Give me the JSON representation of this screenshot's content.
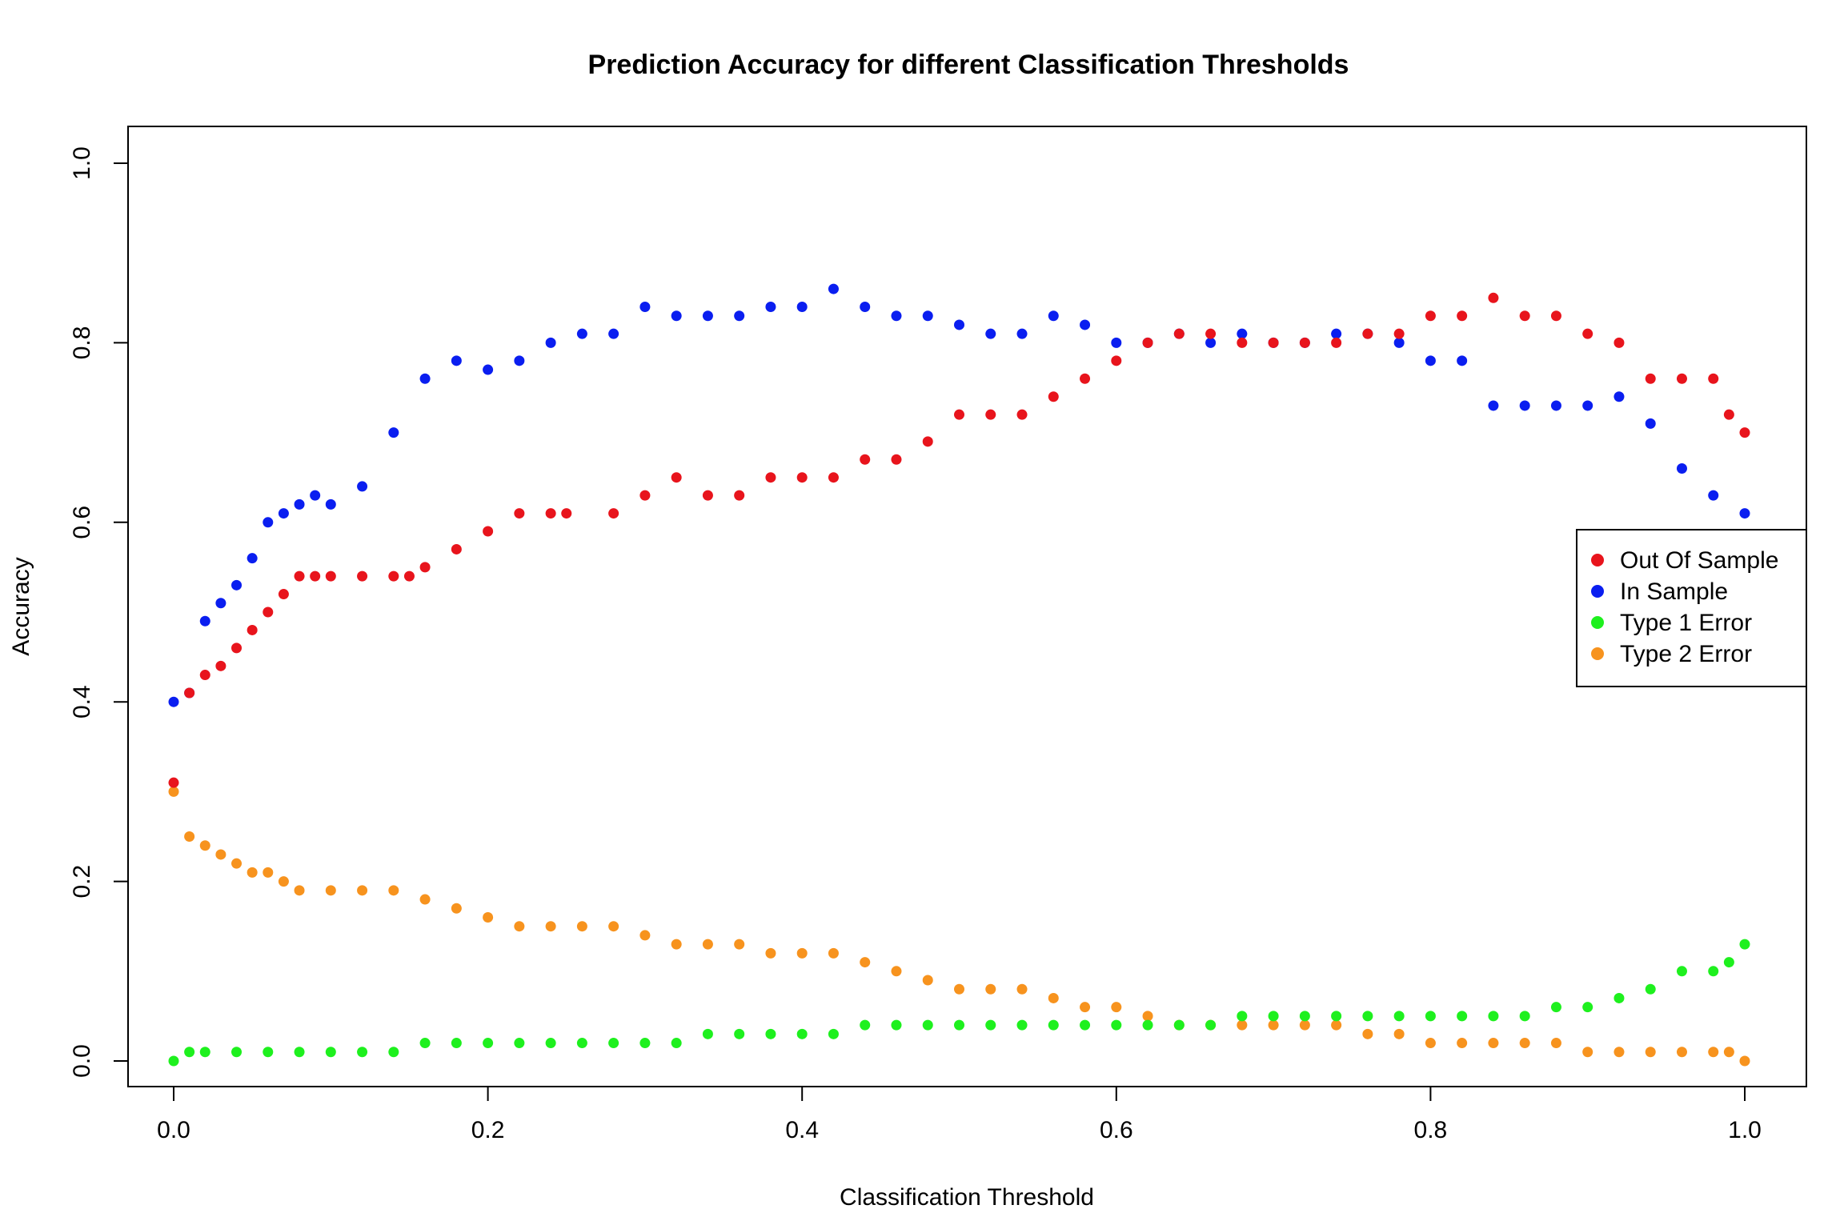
{
  "chart_data": {
    "type": "scatter",
    "title": "Prediction Accuracy for different Classification Thresholds",
    "xlabel": "Classification Threshold",
    "ylabel": "Accuracy",
    "xlim": [
      0,
      1
    ],
    "ylim": [
      0,
      1
    ],
    "x_ticks": [
      "0.0",
      "0.2",
      "0.4",
      "0.6",
      "0.8",
      "1.0"
    ],
    "y_ticks": [
      "0.0",
      "0.2",
      "0.4",
      "0.6",
      "0.8",
      "1.0"
    ],
    "legend_position": "right",
    "series": [
      {
        "name": "Out Of Sample",
        "color": "#e8141c",
        "x": [
          0.0,
          0.01,
          0.02,
          0.03,
          0.04,
          0.05,
          0.06,
          0.07,
          0.08,
          0.09,
          0.1,
          0.12,
          0.14,
          0.15,
          0.16,
          0.18,
          0.2,
          0.22,
          0.24,
          0.25,
          0.28,
          0.3,
          0.32,
          0.34,
          0.36,
          0.38,
          0.4,
          0.42,
          0.44,
          0.46,
          0.48,
          0.5,
          0.52,
          0.54,
          0.56,
          0.58,
          0.6,
          0.62,
          0.64,
          0.66,
          0.68,
          0.7,
          0.72,
          0.74,
          0.76,
          0.78,
          0.8,
          0.82,
          0.84,
          0.86,
          0.88,
          0.9,
          0.92,
          0.94,
          0.96,
          0.98,
          0.99,
          1.0
        ],
        "y": [
          0.31,
          0.41,
          0.43,
          0.44,
          0.46,
          0.48,
          0.5,
          0.52,
          0.54,
          0.54,
          0.54,
          0.54,
          0.54,
          0.54,
          0.55,
          0.57,
          0.59,
          0.61,
          0.61,
          0.61,
          0.61,
          0.63,
          0.65,
          0.63,
          0.63,
          0.65,
          0.65,
          0.65,
          0.67,
          0.67,
          0.69,
          0.72,
          0.72,
          0.72,
          0.74,
          0.76,
          0.78,
          0.8,
          0.81,
          0.81,
          0.8,
          0.8,
          0.8,
          0.8,
          0.81,
          0.81,
          0.83,
          0.83,
          0.85,
          0.83,
          0.83,
          0.81,
          0.8,
          0.76,
          0.76,
          0.76,
          0.72,
          0.7
        ]
      },
      {
        "name": "In Sample",
        "color": "#0a1ef0",
        "x": [
          0.0,
          0.01,
          0.02,
          0.03,
          0.04,
          0.05,
          0.06,
          0.07,
          0.08,
          0.09,
          0.1,
          0.12,
          0.14,
          0.16,
          0.18,
          0.2,
          0.22,
          0.24,
          0.26,
          0.28,
          0.3,
          0.32,
          0.34,
          0.36,
          0.38,
          0.4,
          0.42,
          0.44,
          0.46,
          0.48,
          0.5,
          0.52,
          0.54,
          0.56,
          0.58,
          0.6,
          0.62,
          0.64,
          0.66,
          0.68,
          0.7,
          0.72,
          0.74,
          0.76,
          0.78,
          0.8,
          0.82,
          0.84,
          0.86,
          0.88,
          0.9,
          0.92,
          0.94,
          0.96,
          0.98,
          1.0
        ],
        "y": [
          0.4,
          0.41,
          0.49,
          0.51,
          0.53,
          0.56,
          0.6,
          0.61,
          0.62,
          0.63,
          0.62,
          0.64,
          0.7,
          0.76,
          0.78,
          0.77,
          0.78,
          0.8,
          0.81,
          0.81,
          0.84,
          0.83,
          0.83,
          0.83,
          0.84,
          0.84,
          0.86,
          0.84,
          0.83,
          0.83,
          0.82,
          0.81,
          0.81,
          0.83,
          0.82,
          0.8,
          0.8,
          0.81,
          0.8,
          0.81,
          0.8,
          0.8,
          0.81,
          0.81,
          0.8,
          0.78,
          0.78,
          0.73,
          0.73,
          0.73,
          0.73,
          0.74,
          0.71,
          0.66,
          0.63,
          0.61
        ]
      },
      {
        "name": "Type 1 Error",
        "color": "#1ef01e",
        "x": [
          0.0,
          0.01,
          0.02,
          0.04,
          0.06,
          0.08,
          0.1,
          0.12,
          0.14,
          0.16,
          0.18,
          0.2,
          0.22,
          0.24,
          0.26,
          0.28,
          0.3,
          0.32,
          0.34,
          0.36,
          0.38,
          0.4,
          0.42,
          0.44,
          0.46,
          0.48,
          0.5,
          0.52,
          0.54,
          0.56,
          0.58,
          0.6,
          0.62,
          0.64,
          0.66,
          0.68,
          0.7,
          0.72,
          0.74,
          0.76,
          0.78,
          0.8,
          0.82,
          0.84,
          0.86,
          0.88,
          0.9,
          0.92,
          0.94,
          0.96,
          0.98,
          0.99,
          1.0
        ],
        "y": [
          0.0,
          0.01,
          0.01,
          0.01,
          0.01,
          0.01,
          0.01,
          0.01,
          0.01,
          0.02,
          0.02,
          0.02,
          0.02,
          0.02,
          0.02,
          0.02,
          0.02,
          0.02,
          0.03,
          0.03,
          0.03,
          0.03,
          0.03,
          0.04,
          0.04,
          0.04,
          0.04,
          0.04,
          0.04,
          0.04,
          0.04,
          0.04,
          0.04,
          0.04,
          0.04,
          0.05,
          0.05,
          0.05,
          0.05,
          0.05,
          0.05,
          0.05,
          0.05,
          0.05,
          0.05,
          0.06,
          0.06,
          0.07,
          0.08,
          0.1,
          0.1,
          0.11,
          0.13
        ]
      },
      {
        "name": "Type 2 Error",
        "color": "#f7931e",
        "x": [
          0.0,
          0.01,
          0.02,
          0.03,
          0.04,
          0.05,
          0.06,
          0.07,
          0.08,
          0.1,
          0.12,
          0.14,
          0.16,
          0.18,
          0.2,
          0.22,
          0.24,
          0.26,
          0.28,
          0.3,
          0.32,
          0.34,
          0.36,
          0.38,
          0.4,
          0.42,
          0.44,
          0.46,
          0.48,
          0.5,
          0.52,
          0.54,
          0.56,
          0.58,
          0.6,
          0.62,
          0.64,
          0.66,
          0.68,
          0.7,
          0.72,
          0.74,
          0.76,
          0.78,
          0.8,
          0.82,
          0.84,
          0.86,
          0.88,
          0.9,
          0.92,
          0.94,
          0.96,
          0.98,
          0.99,
          1.0
        ],
        "y": [
          0.3,
          0.25,
          0.24,
          0.23,
          0.22,
          0.21,
          0.21,
          0.2,
          0.19,
          0.19,
          0.19,
          0.19,
          0.18,
          0.17,
          0.16,
          0.15,
          0.15,
          0.15,
          0.15,
          0.14,
          0.13,
          0.13,
          0.13,
          0.12,
          0.12,
          0.12,
          0.11,
          0.1,
          0.09,
          0.08,
          0.08,
          0.08,
          0.07,
          0.06,
          0.06,
          0.05,
          0.04,
          0.04,
          0.04,
          0.04,
          0.04,
          0.04,
          0.03,
          0.03,
          0.02,
          0.02,
          0.02,
          0.02,
          0.02,
          0.01,
          0.01,
          0.01,
          0.01,
          0.01,
          0.01,
          0.0
        ]
      }
    ]
  }
}
